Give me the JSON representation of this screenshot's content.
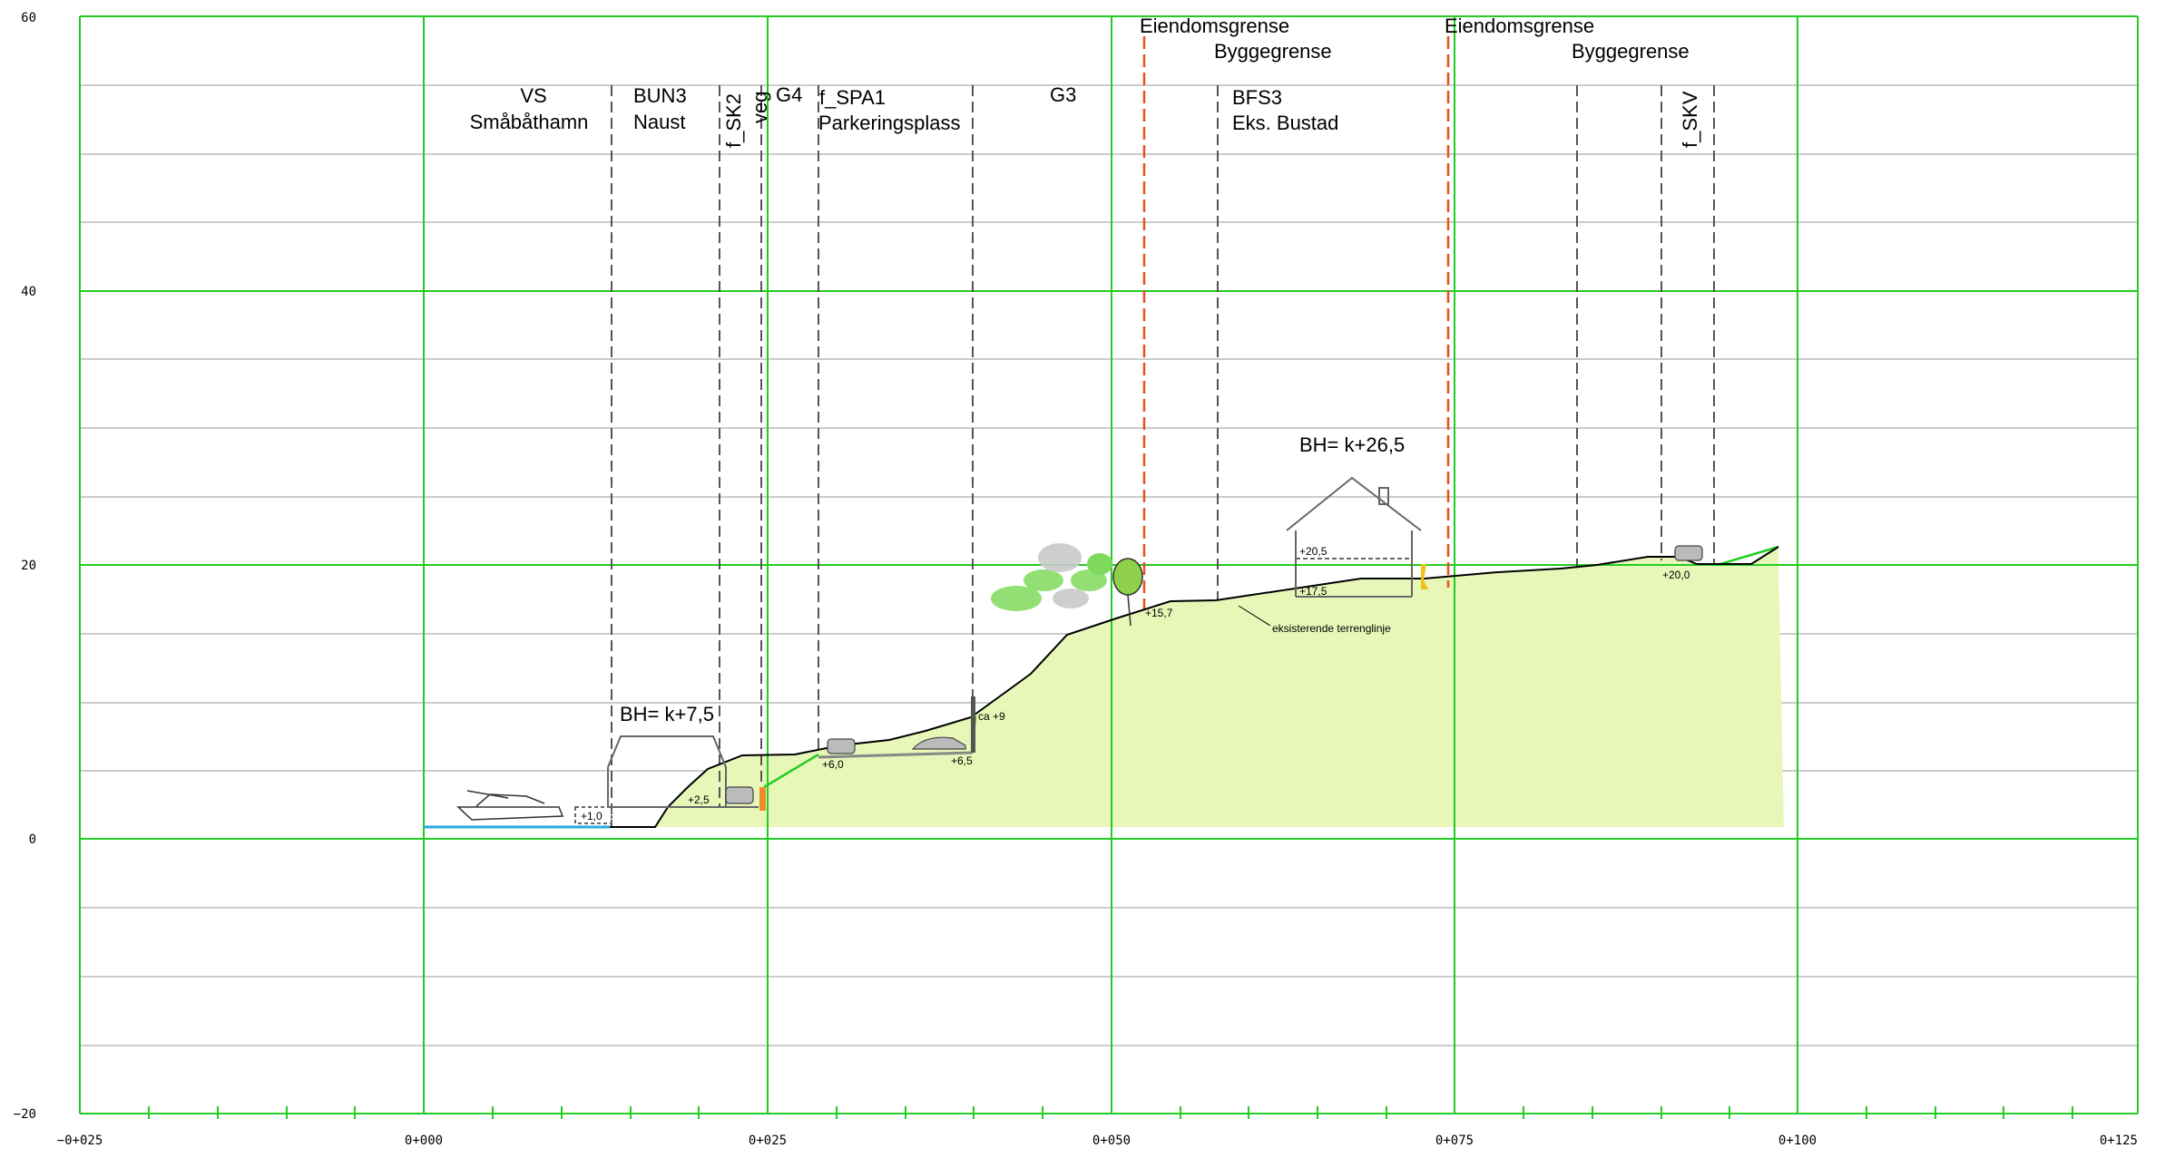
{
  "axes": {
    "y_ticks": [
      "60",
      "40",
      "20",
      "0",
      "−20"
    ],
    "x_ticks": [
      "−0+025",
      "0+000",
      "0+025",
      "0+050",
      "0+075",
      "0+100",
      "0+125"
    ]
  },
  "zones": {
    "vs": "VS",
    "vs_sub": "Småbåthamn",
    "bun3": "BUN3",
    "bun3_sub": "Naust",
    "f_sk2": "f_SK2",
    "veg": "veg",
    "g4": "G4",
    "f_spa1": "f_SPA1",
    "f_spa1_sub": "Parkeringsplass",
    "g3": "G3",
    "bfs3": "BFS3",
    "bfs3_sub": "Eks. Bustad",
    "f_skv": "f_SKV"
  },
  "boundaries": {
    "eiendom_1": "Eiendomsgrense",
    "bygge_1": "Byggegrense",
    "eiendom_2": "Eiendomsgrense",
    "bygge_2": "Byggegrense"
  },
  "heights": {
    "naust_bh": "BH= k+7,5",
    "house_bh": "BH= k+26,5"
  },
  "levels": {
    "l_1_0": "+1,0",
    "l_2_5": "+2,5",
    "l_6_0": "+6,0",
    "l_6_5": "+6,5",
    "ca_9": "ca +9",
    "l_15_7": "+15,7",
    "l_20_5": "+20,5",
    "l_17_5": "+17,5",
    "l_20_0": "+20,0"
  },
  "terrain_label": "eksisterende terrenglinje",
  "colors": {
    "grid": "#22cc22",
    "grid_minor": "#999999",
    "fill": "#e6f7b8",
    "property_line": "#e8501e",
    "water": "#2aa8e0"
  }
}
